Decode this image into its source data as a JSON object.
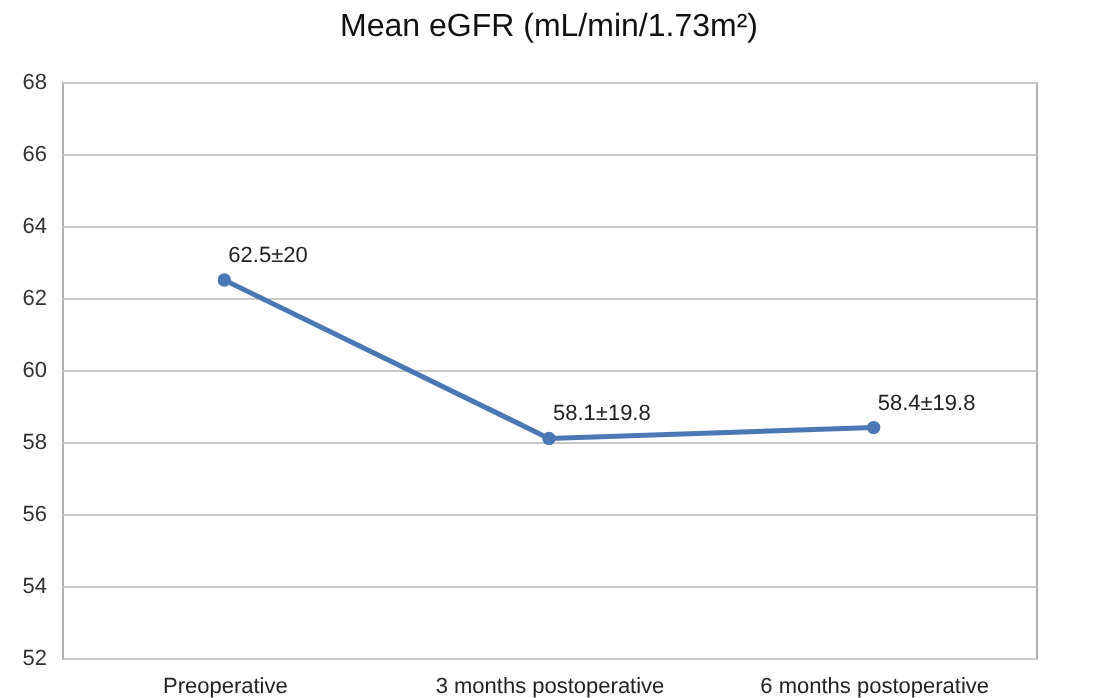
{
  "chart_data": {
    "type": "line",
    "title": "Mean eGFR (mL/min/1.73m²)",
    "categories": [
      "Preoperative",
      "3 months postoperative",
      "6 months postoperative"
    ],
    "series": [
      {
        "color": "#4a78b4",
        "values": [
          62.5,
          58.1,
          58.4
        ],
        "value_labels": [
          "62.5±20",
          "58.1±19.8",
          "58.4±19.8"
        ]
      }
    ],
    "ylim": [
      52,
      68
    ],
    "yticks": [
      52,
      54,
      56,
      58,
      60,
      62,
      64,
      66,
      68
    ],
    "grid": "y",
    "marker": "circle",
    "line_style": "solid"
  }
}
